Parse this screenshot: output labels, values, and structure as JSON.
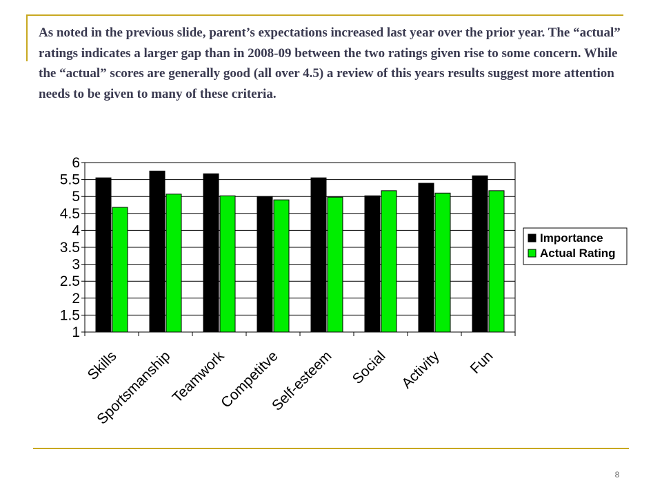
{
  "slide": {
    "body_text": "As noted in the previous slide, parent’s expectations increased last year over the prior year. The “actual” ratings indicates a larger gap than in 2008-09 between the two ratings given rise to some concern. While the “actual” scores are generally good (all over 4.5) a review of this years results suggest more attention needs to be given to many of these criteria.",
    "page_number": "8",
    "accent_color": "#c8a820",
    "text_color": "#3a3a50"
  },
  "chart_data": {
    "type": "bar",
    "categories": [
      "Skills",
      "Sportsmanship",
      "Teamwork",
      "Competitve",
      "Self-esteem",
      "Social",
      "Activity",
      "Fun"
    ],
    "series": [
      {
        "name": "Importance",
        "values": [
          5.55,
          5.75,
          5.67,
          5.0,
          5.55,
          5.02,
          5.39,
          5.61
        ],
        "color": "#000000"
      },
      {
        "name": "Actual Rating",
        "values": [
          4.68,
          5.07,
          5.02,
          4.9,
          4.98,
          5.17,
          5.1,
          5.17
        ],
        "color": "#00ee00"
      }
    ],
    "title": "",
    "xlabel": "",
    "ylabel": "",
    "ylim": [
      1,
      6
    ],
    "yticks": [
      "1",
      "1.5",
      "2",
      "2.5",
      "3",
      "3.5",
      "4",
      "4.5",
      "5",
      "5.5",
      "6"
    ],
    "grid": true,
    "legend_position": "right",
    "plot_background": "#ffffff",
    "grid_color": "#000000"
  }
}
